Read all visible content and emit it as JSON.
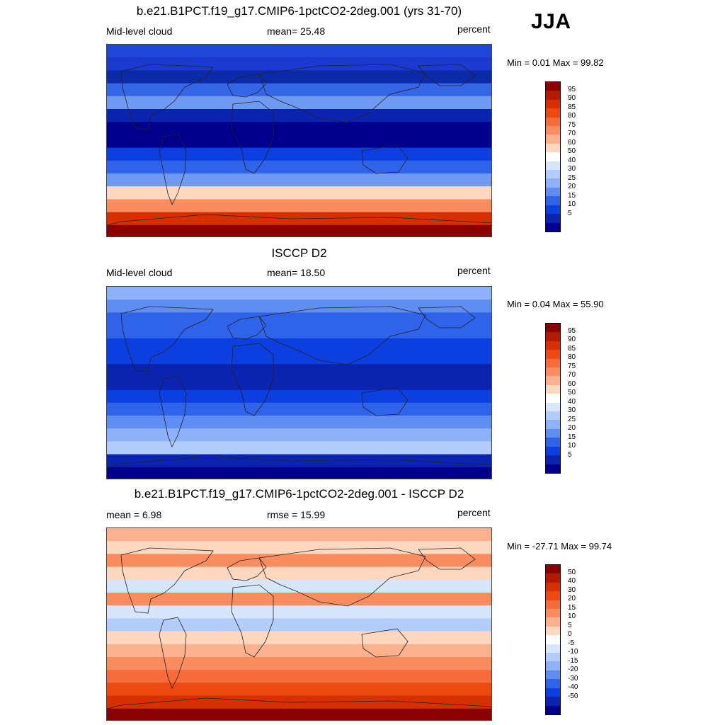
{
  "season": "JJA",
  "unit": "percent",
  "panels": [
    {
      "title": "b.e21.B1PCT.f19_g17.CMIP6-1pctCO2-2deg.001 (yrs 31-70)",
      "left_label": "Mid-level cloud",
      "center_label": "mean=  25.48",
      "right_label": "percent",
      "minmax_label": "Min =   0.01 Max =  99.82",
      "colorbar_labels": [
        "95",
        "90",
        "85",
        "80",
        "75",
        "70",
        "60",
        "50",
        "40",
        "30",
        "25",
        "20",
        "15",
        "10",
        "5"
      ],
      "colorbar_colors": [
        "#8b0000",
        "#b41a00",
        "#d73000",
        "#ed4a12",
        "#f56b3a",
        "#f98d60",
        "#fbb08e",
        "#fdd8bf",
        "#ffffff",
        "#d8e6fb",
        "#b3cdfa",
        "#8eb2f7",
        "#5f8ef2",
        "#2e63ea",
        "#0b3fdf",
        "#0a24b0",
        "#00008c"
      ]
    },
    {
      "title": "ISCCP D2",
      "left_label": "Mid-level cloud",
      "center_label": "mean=  18.50",
      "right_label": "percent",
      "minmax_label": "Min =   0.04 Max =  55.90",
      "colorbar_labels": [
        "95",
        "90",
        "85",
        "80",
        "75",
        "70",
        "60",
        "50",
        "40",
        "30",
        "25",
        "20",
        "15",
        "10",
        "5"
      ],
      "colorbar_colors": [
        "#8b0000",
        "#b41a00",
        "#d73000",
        "#ed4a12",
        "#f56b3a",
        "#f98d60",
        "#fbb08e",
        "#fdd8bf",
        "#ffffff",
        "#d8e6fb",
        "#b3cdfa",
        "#8eb2f7",
        "#5f8ef2",
        "#2e63ea",
        "#0b3fdf",
        "#0a24b0",
        "#00008c"
      ]
    },
    {
      "title": "b.e21.B1PCT.f19_g17.CMIP6-1pctCO2-2deg.001 - ISCCP D2",
      "left_label": "mean =   6.98",
      "center_label": "rmse =  15.99",
      "right_label": "percent",
      "minmax_label": "Min = -27.71 Max =  99.74",
      "colorbar_labels": [
        "50",
        "40",
        "30",
        "20",
        "15",
        "10",
        "5",
        "0",
        "-5",
        "-10",
        "-15",
        "-20",
        "-30",
        "-40",
        "-50"
      ],
      "colorbar_colors": [
        "#8b0000",
        "#b41a00",
        "#d73000",
        "#ed4a12",
        "#f56b3a",
        "#f98d60",
        "#fbb08e",
        "#fdd8bf",
        "#ffffff",
        "#d8e6fb",
        "#b3cdfa",
        "#8eb2f7",
        "#5f8ef2",
        "#2e63ea",
        "#0b3fdf",
        "#0a24b0",
        "#00008c"
      ]
    }
  ],
  "map_bands": [
    [
      "#1f46d6",
      "#1a3ad0",
      "#0b2aa8",
      "#3566e6",
      "#6f9af2",
      "#0a24b0",
      "#00008c",
      "#00008c",
      "#0b3fdf",
      "#2e63ea",
      "#6f9af2",
      "#fdd8bf",
      "#f98d60",
      "#d73000",
      "#8b0000"
    ],
    [
      "#8eb2f7",
      "#5f8ef2",
      "#2e63ea",
      "#2e63ea",
      "#0b3fdf",
      "#0b3fdf",
      "#0a24b0",
      "#0a24b0",
      "#0b3fdf",
      "#2e63ea",
      "#5f8ef2",
      "#8eb2f7",
      "#b3cdfa",
      "#0a24b0",
      "#00008c"
    ],
    [
      "#fbb08e",
      "#fdd8bf",
      "#f98d60",
      "#fdd8bf",
      "#d8e6fb",
      "#f98d60",
      "#d8e6fb",
      "#b3cdfa",
      "#fdd8bf",
      "#fbb08e",
      "#f98d60",
      "#f56b3a",
      "#ed4a12",
      "#d73000",
      "#8b0000"
    ]
  ]
}
